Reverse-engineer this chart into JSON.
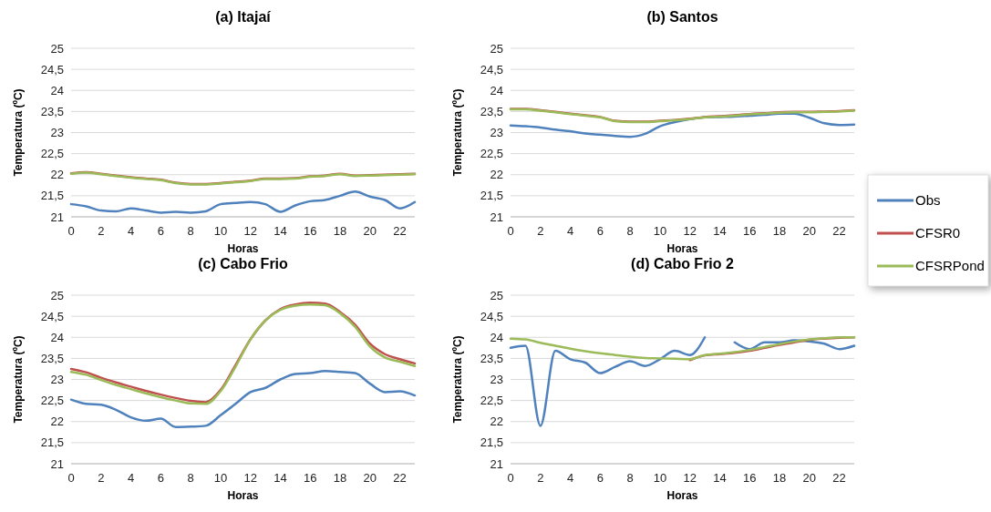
{
  "chart_data": [
    {
      "type": "line",
      "title": "(a) Itajaí",
      "xlabel": "Horas",
      "ylabel": "Temperatura (ºC)",
      "x": [
        0,
        1,
        2,
        3,
        4,
        5,
        6,
        7,
        8,
        9,
        10,
        11,
        12,
        13,
        14,
        15,
        16,
        17,
        18,
        19,
        20,
        21,
        22,
        23
      ],
      "xlim": [
        0,
        23
      ],
      "xticks": [
        0,
        2,
        4,
        6,
        8,
        10,
        12,
        14,
        16,
        18,
        20,
        22
      ],
      "ylim": [
        21,
        25
      ],
      "yticks": [
        21,
        {
          "value": 21.5,
          "label": "21,5"
        },
        22,
        {
          "value": 22.5,
          "label": "22,5"
        },
        23,
        {
          "value": 23.5,
          "label": "23,5"
        },
        24,
        {
          "value": 24.5,
          "label": "24,5"
        },
        25
      ],
      "grid": "y",
      "legend": false,
      "series": [
        {
          "color": "#4f81bd",
          "values": [
            21.3,
            21.25,
            21.15,
            21.13,
            21.2,
            21.15,
            21.1,
            21.12,
            21.1,
            21.13,
            21.3,
            21.33,
            21.35,
            21.3,
            21.12,
            21.27,
            21.37,
            21.4,
            21.5,
            21.6,
            21.48,
            21.4,
            21.2,
            21.35
          ]
        },
        {
          "color": "#c0504d",
          "values": [
            22.03,
            22.06,
            22.02,
            21.98,
            21.94,
            21.91,
            21.88,
            21.81,
            21.78,
            21.78,
            21.8,
            21.83,
            21.86,
            21.91,
            21.91,
            21.92,
            21.96,
            21.98,
            22.02,
            21.98,
            21.99,
            22.0,
            22.01,
            22.02
          ]
        },
        {
          "color": "#9bbb59",
          "values": [
            22.02,
            22.05,
            22.01,
            21.97,
            21.93,
            21.9,
            21.87,
            21.8,
            21.77,
            21.77,
            21.79,
            21.82,
            21.85,
            21.9,
            21.9,
            21.91,
            21.95,
            21.97,
            22.01,
            21.97,
            21.98,
            21.99,
            22.0,
            22.01
          ]
        }
      ]
    },
    {
      "type": "line",
      "title": "(b) Santos",
      "xlabel": "Horas",
      "ylabel": "Temperatura (ºC)",
      "x": [
        0,
        1,
        2,
        3,
        4,
        5,
        6,
        7,
        8,
        9,
        10,
        11,
        12,
        13,
        14,
        15,
        16,
        17,
        18,
        19,
        20,
        21,
        22,
        23
      ],
      "xlim": [
        0,
        23
      ],
      "xticks": [
        0,
        2,
        4,
        6,
        8,
        10,
        12,
        14,
        16,
        18,
        20,
        22
      ],
      "ylim": [
        21,
        25
      ],
      "yticks": [
        21,
        {
          "value": 21.5,
          "label": "21,5"
        },
        22,
        {
          "value": 22.5,
          "label": "22,5"
        },
        23,
        {
          "value": 23.5,
          "label": "23,5"
        },
        24,
        {
          "value": 24.5,
          "label": "24,5"
        },
        25
      ],
      "grid": "y",
      "legend": false,
      "series": [
        {
          "color": "#4f81bd",
          "values": [
            23.17,
            23.15,
            23.12,
            23.07,
            23.03,
            22.98,
            22.95,
            22.92,
            22.9,
            22.97,
            23.15,
            23.25,
            23.32,
            23.36,
            23.37,
            23.38,
            23.4,
            23.42,
            23.45,
            23.45,
            23.35,
            23.22,
            23.18,
            23.19
          ]
        },
        {
          "color": "#c0504d",
          "values": [
            23.56,
            23.56,
            23.53,
            23.49,
            23.45,
            23.41,
            23.37,
            23.28,
            23.26,
            23.26,
            23.28,
            23.3,
            23.33,
            23.37,
            23.39,
            23.41,
            23.44,
            23.46,
            23.48,
            23.49,
            23.49,
            23.5,
            23.51,
            23.53
          ]
        },
        {
          "color": "#9bbb59",
          "values": [
            23.55,
            23.55,
            23.52,
            23.48,
            23.44,
            23.4,
            23.36,
            23.27,
            23.25,
            23.25,
            23.27,
            23.29,
            23.32,
            23.36,
            23.38,
            23.4,
            23.43,
            23.45,
            23.47,
            23.48,
            23.48,
            23.49,
            23.5,
            23.52
          ]
        }
      ]
    },
    {
      "type": "line",
      "title": "(c) Cabo Frio",
      "xlabel": "Horas",
      "ylabel": "Temperatura (ºC)",
      "x": [
        0,
        1,
        2,
        3,
        4,
        5,
        6,
        7,
        8,
        9,
        10,
        11,
        12,
        13,
        14,
        15,
        16,
        17,
        18,
        19,
        20,
        21,
        22,
        23
      ],
      "xlim": [
        0,
        23
      ],
      "xticks": [
        0,
        2,
        4,
        6,
        8,
        10,
        12,
        14,
        16,
        18,
        20,
        22
      ],
      "ylim": [
        21,
        25
      ],
      "yticks": [
        21,
        {
          "value": 21.5,
          "label": "21,5"
        },
        22,
        {
          "value": 22.5,
          "label": "22,5"
        },
        23,
        {
          "value": 23.5,
          "label": "23,5"
        },
        24,
        {
          "value": 24.5,
          "label": "24,5"
        },
        25
      ],
      "grid": "y",
      "legend": false,
      "series": [
        {
          "color": "#4f81bd",
          "values": [
            22.52,
            22.42,
            22.4,
            22.28,
            22.1,
            22.02,
            22.07,
            21.87,
            21.88,
            21.9,
            22.15,
            22.42,
            22.7,
            22.8,
            23.0,
            23.13,
            23.15,
            23.2,
            23.18,
            23.15,
            22.9,
            22.7,
            22.72,
            22.62
          ]
        },
        {
          "color": "#c0504d",
          "values": [
            23.25,
            23.17,
            23.04,
            22.93,
            22.83,
            22.73,
            22.64,
            22.56,
            22.49,
            22.46,
            22.75,
            23.34,
            23.95,
            24.4,
            24.67,
            24.78,
            24.82,
            24.8,
            24.6,
            24.3,
            23.85,
            23.6,
            23.48,
            23.38
          ]
        },
        {
          "color": "#9bbb59",
          "values": [
            23.18,
            23.11,
            22.99,
            22.87,
            22.77,
            22.67,
            22.58,
            22.5,
            22.43,
            22.42,
            22.72,
            23.3,
            23.95,
            24.4,
            24.65,
            24.75,
            24.78,
            24.76,
            24.57,
            24.25,
            23.78,
            23.52,
            23.42,
            23.32
          ]
        }
      ]
    },
    {
      "type": "line",
      "title": "(d) Cabo Frio 2",
      "xlabel": "Horas",
      "ylabel": "Temperatura (ºC)",
      "x": [
        0,
        1,
        2,
        3,
        4,
        5,
        6,
        7,
        8,
        9,
        10,
        11,
        12,
        13,
        14,
        15,
        16,
        17,
        18,
        19,
        20,
        21,
        22,
        23
      ],
      "xlim": [
        0,
        23
      ],
      "xticks": [
        0,
        2,
        4,
        6,
        8,
        10,
        12,
        14,
        16,
        18,
        20,
        22
      ],
      "ylim": [
        21,
        25
      ],
      "yticks": [
        21,
        {
          "value": 21.5,
          "label": "21,5"
        },
        22,
        {
          "value": 22.5,
          "label": "22,5"
        },
        23,
        {
          "value": 23.5,
          "label": "23,5"
        },
        24,
        {
          "value": 24.5,
          "label": "24,5"
        },
        25
      ],
      "grid": "y",
      "legend": "right",
      "series": [
        {
          "name": "Obs",
          "color": "#4f81bd",
          "values": [
            23.75,
            23.8,
            21.9,
            23.68,
            23.48,
            23.4,
            23.15,
            23.3,
            23.43,
            23.32,
            23.48,
            23.68,
            23.58,
            24.0,
            null,
            23.88,
            23.72,
            23.88,
            23.88,
            23.93,
            23.9,
            23.85,
            23.72,
            23.8
          ]
        },
        {
          "name": "CFSR0",
          "color": "#c0504d",
          "values": [
            null,
            null,
            null,
            null,
            null,
            null,
            null,
            null,
            null,
            null,
            null,
            null,
            23.46,
            23.57,
            23.6,
            23.63,
            23.68,
            23.75,
            23.82,
            23.88,
            23.94,
            23.97,
            23.99,
            24.0
          ]
        },
        {
          "name": "CFSRPond",
          "color": "#9bbb59",
          "values": [
            23.97,
            23.95,
            23.87,
            23.8,
            23.73,
            23.67,
            23.62,
            23.58,
            23.54,
            23.51,
            23.5,
            23.49,
            23.48,
            23.58,
            23.61,
            23.65,
            23.7,
            23.77,
            23.84,
            23.9,
            23.95,
            23.98,
            24.0,
            24.0
          ]
        }
      ]
    }
  ]
}
